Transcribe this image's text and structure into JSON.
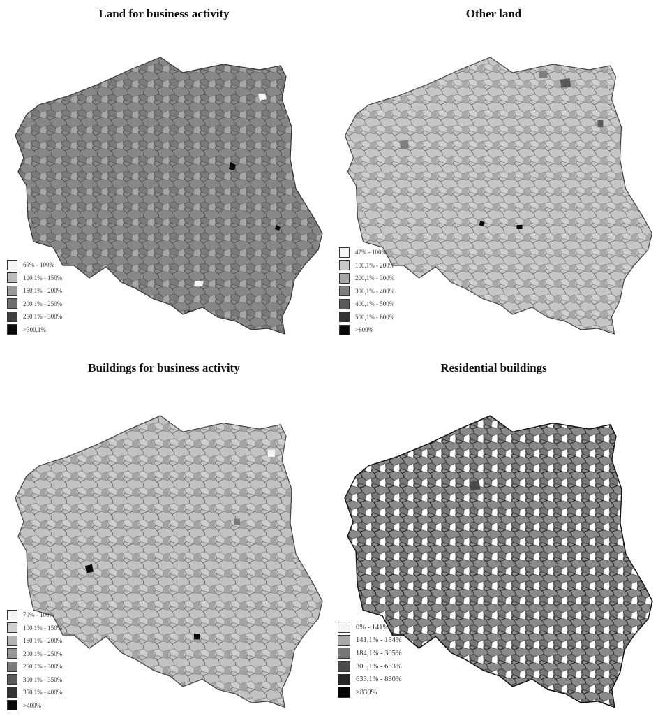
{
  "panels": [
    {
      "id": "land-business",
      "title": "Land for business activity",
      "legend": [
        {
          "label": "69% - 100%",
          "color": "#f4f4f4"
        },
        {
          "label": "100,1% - 150%",
          "color": "#bdbdbd"
        },
        {
          "label": "150,1% - 200%",
          "color": "#9a9a9a"
        },
        {
          "label": "200,1% - 250%",
          "color": "#6e6e6e"
        },
        {
          "label": "250,1% - 300%",
          "color": "#3e3e3e"
        },
        {
          "label": ">300,1%",
          "color": "#0a0a0a"
        }
      ],
      "map_colors": {
        "base": "#878787",
        "accent": [
          "#a6a6a6",
          "#707070",
          "#5e5e5e",
          "#b9b9b9"
        ]
      }
    },
    {
      "id": "other-land",
      "title": "Other land",
      "legend": [
        {
          "label": "47% - 100%",
          "color": "#f4f4f4"
        },
        {
          "label": "100,1% - 200%",
          "color": "#c9c9c9"
        },
        {
          "label": "200,1% - 300%",
          "color": "#a6a6a6"
        },
        {
          "label": "300,1% - 400%",
          "color": "#7f7f7f"
        },
        {
          "label": "400,1% - 500%",
          "color": "#5a5a5a"
        },
        {
          "label": "500,1% - 600%",
          "color": "#333333"
        },
        {
          "label": ">600%",
          "color": "#0a0a0a"
        }
      ],
      "map_colors": {
        "base": "#c6c6c6",
        "accent": [
          "#a9a9a9",
          "#b6b6b6",
          "#8d8d8d",
          "#d6d6d6"
        ]
      }
    },
    {
      "id": "buildings-business",
      "title": "Buildings for business activity",
      "legend": [
        {
          "label": "70% - 100%",
          "color": "#f4f4f4"
        },
        {
          "label": "100,1% - 150%",
          "color": "#cfcfcf"
        },
        {
          "label": "150,1% - 200%",
          "color": "#b3b3b3"
        },
        {
          "label": "200,1% - 250%",
          "color": "#979797"
        },
        {
          "label": "250,1% - 300%",
          "color": "#7a7a7a"
        },
        {
          "label": "300,1% - 350%",
          "color": "#5a5a5a"
        },
        {
          "label": "350,1% - 400%",
          "color": "#333333"
        },
        {
          "label": ">400%",
          "color": "#0a0a0a"
        }
      ],
      "map_colors": {
        "base": "#c2c2c2",
        "accent": [
          "#a4a4a4",
          "#b0b0b0",
          "#d3d3d3",
          "#8f8f8f"
        ]
      }
    },
    {
      "id": "residential-buildings",
      "title": "Residential buildings",
      "legend": [
        {
          "label": "0% - 141%",
          "color": "#f4f4f4"
        },
        {
          "label": "141,1% - 184%",
          "color": "#a9a9a9"
        },
        {
          "label": "184,1% - 305%",
          "color": "#777777"
        },
        {
          "label": "305,1% - 633%",
          "color": "#4a4a4a"
        },
        {
          "label": "633,1% - 830%",
          "color": "#262626"
        },
        {
          "label": ">830%",
          "color": "#050505"
        }
      ],
      "map_colors": {
        "base": "#8a8a8a",
        "accent": [
          "#ffffff",
          "#707070",
          "#a3a3a3",
          "#ffffff"
        ]
      }
    }
  ]
}
